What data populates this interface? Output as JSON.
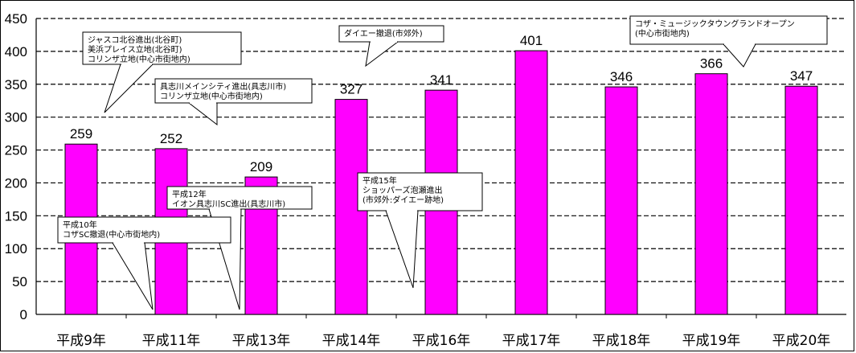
{
  "chart_data": {
    "type": "bar",
    "categories": [
      "平成9年",
      "平成11年",
      "平成13年",
      "平成14年",
      "平成16年",
      "平成17年",
      "平成18年",
      "平成19年",
      "平成20年"
    ],
    "values": [
      259,
      252,
      209,
      327,
      341,
      401,
      346,
      366,
      347
    ],
    "data_labels": [
      "259",
      "252",
      "209",
      "327",
      "341",
      "401",
      "346",
      "366",
      "347"
    ],
    "y_ticks": [
      "0",
      "50",
      "100",
      "150",
      "200",
      "250",
      "300",
      "350",
      "400",
      "450"
    ],
    "ylim": [
      0,
      450
    ],
    "title": "",
    "xlabel": "",
    "ylabel": "",
    "grid": "horizontal dashed",
    "bar_color": "#ff00ff",
    "annotations": [
      {
        "lines": [
          "ジャスコ北谷進出(北谷町)",
          "美浜プレイス立地(北谷町)",
          "コリンザ立地(中心市街地内)"
        ]
      },
      {
        "lines": [
          "具志川メインシティ進出(具志川市)",
          "コリンザ立地(中心市街地内)"
        ]
      },
      {
        "lines": [
          "ダイエー撤退(市郊外)"
        ]
      },
      {
        "lines": [
          "コザ・ミュージックタウングランドオープン",
          "(中心市街地内)"
        ]
      },
      {
        "lines": [
          "平成12年",
          "イオン具志川SC進出(具志川市)"
        ]
      },
      {
        "lines": [
          "平成15年",
          "ショッパーズ泡瀬進出",
          "(市郊外:ダイエー跡地)"
        ]
      },
      {
        "lines": [
          "平成10年",
          "コザSC撤退(中心市街地内)"
        ]
      }
    ]
  }
}
